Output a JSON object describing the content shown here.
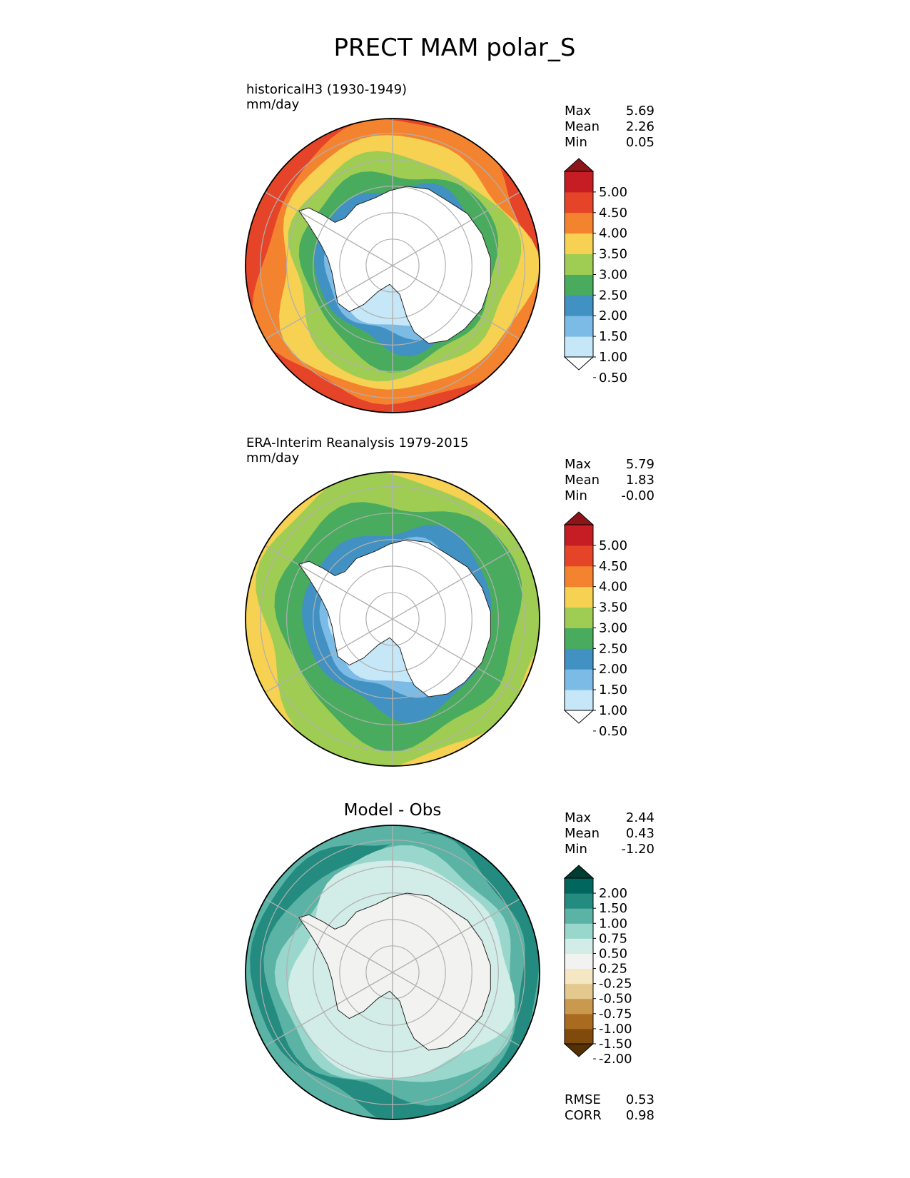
{
  "figure": {
    "title": "PRECT MAM polar_S"
  },
  "chart_data": [
    {
      "type": "heatmap",
      "projection": "south-polar-stereographic",
      "title_line1": "historicalH3 (1930-1949)",
      "title_line2": "mm/day",
      "stats": [
        {
          "label": "Max",
          "value": "5.69"
        },
        {
          "label": "Mean",
          "value": "2.26"
        },
        {
          "label": "Min",
          "value": "0.05"
        }
      ],
      "colorbar": {
        "ticks": [
          "5.00",
          "4.50",
          "4.00",
          "3.50",
          "3.00",
          "2.50",
          "2.00",
          "1.50",
          "1.00",
          "0.50"
        ],
        "colors_low_to_high": [
          "#ffffff",
          "#c6e7f7",
          "#7cbbe6",
          "#4291c3",
          "#49ab5e",
          "#9fcd53",
          "#f6d152",
          "#f4832f",
          "#e64428",
          "#c51d23",
          "#8c1519"
        ],
        "extend": "both"
      },
      "levels_outer_to_inner": [
        3.75,
        3.25,
        2.75,
        2.25,
        1.75,
        1.25,
        0.75
      ],
      "coastline": "Antarctica"
    },
    {
      "type": "heatmap",
      "projection": "south-polar-stereographic",
      "title_line1": "ERA-Interim Reanalysis 1979-2015",
      "title_line2": "mm/day",
      "stats": [
        {
          "label": "Max",
          "value": "5.79"
        },
        {
          "label": "Mean",
          "value": "1.83"
        },
        {
          "label": "Min",
          "value": "-0.00"
        }
      ],
      "colorbar": {
        "ticks": [
          "5.00",
          "4.50",
          "4.00",
          "3.50",
          "3.00",
          "2.50",
          "2.00",
          "1.50",
          "1.00",
          "0.50"
        ],
        "colors_low_to_high": [
          "#ffffff",
          "#c6e7f7",
          "#7cbbe6",
          "#4291c3",
          "#49ab5e",
          "#9fcd53",
          "#f6d152",
          "#f4832f",
          "#e64428",
          "#c51d23",
          "#8c1519"
        ],
        "extend": "both"
      },
      "levels_outer_to_inner": [
        2.75,
        2.25,
        1.75,
        1.25,
        0.75
      ],
      "coastline": "Antarctica"
    },
    {
      "type": "heatmap",
      "projection": "south-polar-stereographic",
      "title_center": "Model - Obs",
      "stats": [
        {
          "label": "Max",
          "value": "2.44"
        },
        {
          "label": "Mean",
          "value": "0.43"
        },
        {
          "label": "Min",
          "value": "-1.20"
        }
      ],
      "colorbar": {
        "ticks": [
          "2.00",
          "1.50",
          "1.00",
          "0.75",
          "0.50",
          "0.25",
          "-0.25",
          "-0.50",
          "-0.75",
          "-1.00",
          "-1.50",
          "-2.00"
        ],
        "colors_low_to_high": [
          "#543005",
          "#7f4a0b",
          "#a86b1f",
          "#c99a4d",
          "#e4c98f",
          "#f5e6c4",
          "#f2f2f0",
          "#d2ece8",
          "#99d7cc",
          "#5ab3a4",
          "#238b7f",
          "#01665e",
          "#003c30"
        ],
        "extend": "both"
      },
      "levels_outer_to_inner": [
        1.0,
        0.75,
        0.5,
        0.25
      ],
      "coastline": "Antarctica",
      "metrics": [
        {
          "label": "RMSE",
          "value": "0.53"
        },
        {
          "label": "CORR",
          "value": "0.98"
        }
      ]
    }
  ]
}
